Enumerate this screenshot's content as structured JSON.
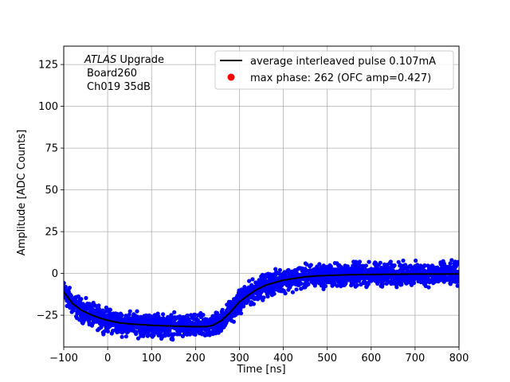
{
  "chart_data": {
    "type": "scatter",
    "xlabel": "Time [ns]",
    "ylabel": "Amplitude [ADC Counts]",
    "xlim": [
      -100,
      800
    ],
    "ylim": [
      -44,
      136
    ],
    "xticks": [
      -100,
      0,
      100,
      200,
      300,
      400,
      500,
      600,
      700,
      800
    ],
    "yticks": [
      -25,
      0,
      25,
      50,
      75,
      100,
      125
    ],
    "xtick_labels": [
      "−100",
      "0",
      "100",
      "200",
      "300",
      "400",
      "500",
      "600",
      "700",
      "800"
    ],
    "ytick_labels": [
      "−25",
      "0",
      "25",
      "50",
      "75",
      "100",
      "125"
    ],
    "grid": true,
    "legend_placement": "top-right",
    "annotation": {
      "line1_italic": "ATLAS",
      "line1_rest": " Upgrade",
      "line2": "Board260",
      "line3": "Ch019 35dB"
    },
    "series": [
      {
        "name": "average interleaved pulse 0.107mA",
        "kind": "line",
        "color": "#000000",
        "x": [
          -100,
          -80,
          -60,
          -40,
          -20,
          0,
          25,
          50,
          75,
          100,
          125,
          150,
          175,
          200,
          225,
          240,
          260,
          280,
          300,
          320,
          340,
          360,
          380,
          400,
          425,
          450,
          475,
          500,
          550,
          600,
          650,
          700,
          750,
          800
        ],
        "y": [
          -11,
          -18,
          -22,
          -24.5,
          -26.5,
          -28,
          -29.5,
          -30.2,
          -30.6,
          -31,
          -31.3,
          -31.5,
          -31.7,
          -31.8,
          -31.8,
          -31,
          -28,
          -23,
          -17,
          -13,
          -9.5,
          -7,
          -5.5,
          -4,
          -3,
          -2,
          -1.5,
          -1.2,
          -0.8,
          -0.6,
          -0.5,
          -0.4,
          -0.4,
          -0.3
        ]
      },
      {
        "name": "samples",
        "kind": "scatter",
        "color": "#0000ff",
        "spread": 3.2
      },
      {
        "name": "max phase: 262 (OFC amp=0.427)",
        "kind": "marker",
        "color": "#ff0000",
        "x": [],
        "y": []
      }
    ]
  }
}
